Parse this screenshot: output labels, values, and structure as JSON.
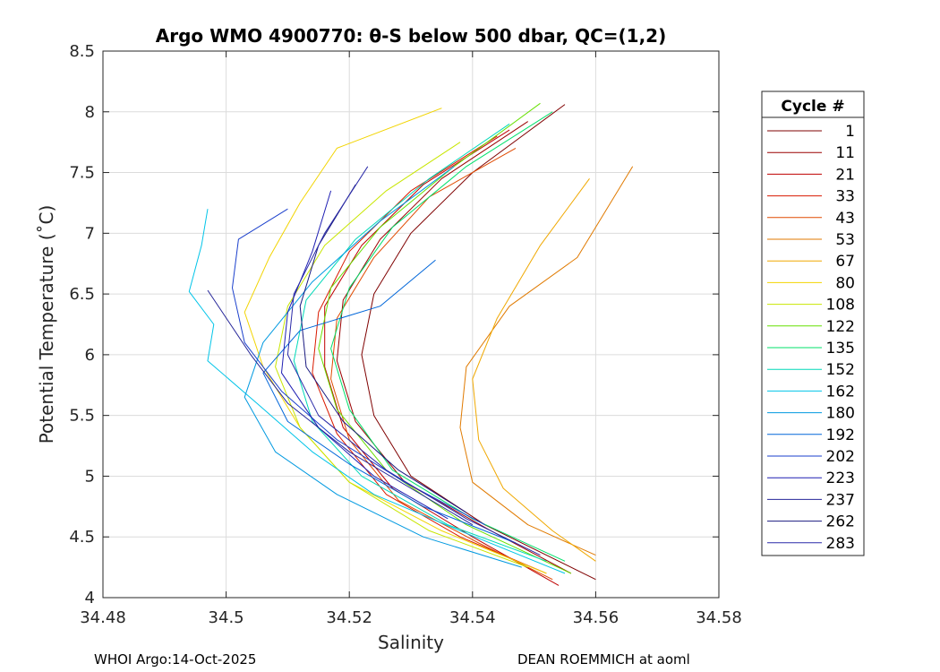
{
  "chart_data": {
    "type": "line",
    "title": "Argo WMO 4900770: θ-S below 500 dbar,  QC=(1,2)",
    "xlabel": "Salinity",
    "ylabel": "Potential Temperature (˚C)",
    "xlim": [
      34.48,
      34.58
    ],
    "ylim": [
      4,
      8.5
    ],
    "xticks": [
      34.48,
      34.5,
      34.52,
      34.54,
      34.56,
      34.58
    ],
    "xtick_labels": [
      "34.48",
      "34.5",
      "34.52",
      "34.54",
      "34.56",
      "34.58"
    ],
    "yticks": [
      4,
      4.5,
      5,
      5.5,
      6,
      6.5,
      7,
      7.5,
      8,
      8.5
    ],
    "ytick_labels": [
      "4",
      "4.5",
      "5",
      "5.5",
      "6",
      "6.5",
      "7",
      "7.5",
      "8",
      "8.5"
    ],
    "grid": true,
    "legend_title": "Cycle #",
    "legend_position": "outside-right",
    "series": [
      {
        "name": "1",
        "color": "#7f0000",
        "points": [
          [
            34.555,
            8.06
          ],
          [
            34.54,
            7.5
          ],
          [
            34.53,
            7.0
          ],
          [
            34.524,
            6.5
          ],
          [
            34.522,
            6.0
          ],
          [
            34.524,
            5.5
          ],
          [
            34.53,
            5.0
          ],
          [
            34.542,
            4.6
          ],
          [
            34.56,
            4.15
          ]
        ]
      },
      {
        "name": "11",
        "color": "#9a0000",
        "points": [
          [
            34.549,
            7.92
          ],
          [
            34.535,
            7.45
          ],
          [
            34.525,
            6.95
          ],
          [
            34.519,
            6.45
          ],
          [
            34.518,
            5.95
          ],
          [
            34.521,
            5.45
          ],
          [
            34.529,
            4.95
          ],
          [
            34.543,
            4.55
          ],
          [
            34.556,
            4.2
          ]
        ]
      },
      {
        "name": "21",
        "color": "#bf0000",
        "points": [
          [
            34.546,
            7.85
          ],
          [
            34.532,
            7.4
          ],
          [
            34.522,
            6.9
          ],
          [
            34.516,
            6.4
          ],
          [
            34.516,
            5.9
          ],
          [
            34.519,
            5.4
          ],
          [
            34.527,
            4.9
          ],
          [
            34.54,
            4.5
          ],
          [
            34.554,
            4.1
          ]
        ]
      },
      {
        "name": "33",
        "color": "#d91a00",
        "points": [
          [
            34.544,
            7.8
          ],
          [
            34.53,
            7.35
          ],
          [
            34.52,
            6.85
          ],
          [
            34.515,
            6.35
          ],
          [
            34.514,
            5.85
          ],
          [
            34.518,
            5.35
          ],
          [
            34.526,
            4.85
          ],
          [
            34.538,
            4.5
          ],
          [
            34.552,
            4.2
          ]
        ]
      },
      {
        "name": "43",
        "color": "#e04a00",
        "points": [
          [
            34.547,
            7.7
          ],
          [
            34.533,
            7.3
          ],
          [
            34.524,
            6.8
          ],
          [
            34.518,
            6.3
          ],
          [
            34.517,
            5.8
          ],
          [
            34.52,
            5.3
          ],
          [
            34.528,
            4.8
          ],
          [
            34.541,
            4.45
          ],
          [
            34.553,
            4.15
          ]
        ]
      },
      {
        "name": "53",
        "color": "#e07a00",
        "points": [
          [
            34.566,
            7.55
          ],
          [
            34.557,
            6.8
          ],
          [
            34.546,
            6.4
          ],
          [
            34.539,
            5.9
          ],
          [
            34.538,
            5.4
          ],
          [
            34.54,
            4.95
          ],
          [
            34.549,
            4.6
          ],
          [
            34.56,
            4.35
          ]
        ]
      },
      {
        "name": "67",
        "color": "#f0a800",
        "points": [
          [
            34.559,
            7.45
          ],
          [
            34.551,
            6.9
          ],
          [
            34.544,
            6.3
          ],
          [
            34.54,
            5.8
          ],
          [
            34.541,
            5.3
          ],
          [
            34.545,
            4.9
          ],
          [
            34.553,
            4.55
          ],
          [
            34.56,
            4.3
          ]
        ]
      },
      {
        "name": "80",
        "color": "#f2d400",
        "points": [
          [
            34.535,
            8.03
          ],
          [
            34.518,
            7.7
          ],
          [
            34.512,
            7.25
          ],
          [
            34.507,
            6.8
          ],
          [
            34.503,
            6.35
          ],
          [
            34.506,
            5.9
          ],
          [
            34.512,
            5.4
          ],
          [
            34.52,
            4.95
          ],
          [
            34.535,
            4.55
          ],
          [
            34.552,
            4.2
          ]
        ]
      },
      {
        "name": "108",
        "color": "#c8e600",
        "points": [
          [
            34.538,
            7.75
          ],
          [
            34.526,
            7.35
          ],
          [
            34.516,
            6.9
          ],
          [
            34.51,
            6.4
          ],
          [
            34.508,
            5.9
          ],
          [
            34.512,
            5.4
          ],
          [
            34.52,
            4.95
          ],
          [
            34.533,
            4.55
          ],
          [
            34.549,
            4.25
          ]
        ]
      },
      {
        "name": "122",
        "color": "#66e000",
        "points": [
          [
            34.551,
            8.07
          ],
          [
            34.537,
            7.55
          ],
          [
            34.525,
            7.05
          ],
          [
            34.517,
            6.55
          ],
          [
            34.515,
            6.05
          ],
          [
            34.518,
            5.55
          ],
          [
            34.526,
            5.05
          ],
          [
            34.539,
            4.6
          ],
          [
            34.556,
            4.2
          ]
        ]
      },
      {
        "name": "135",
        "color": "#00e06a",
        "points": [
          [
            34.553,
            8.0
          ],
          [
            34.539,
            7.55
          ],
          [
            34.527,
            7.05
          ],
          [
            34.52,
            6.55
          ],
          [
            34.517,
            6.05
          ],
          [
            34.52,
            5.55
          ],
          [
            34.527,
            5.05
          ],
          [
            34.54,
            4.65
          ],
          [
            34.555,
            4.3
          ]
        ]
      },
      {
        "name": "152",
        "color": "#00d9b8",
        "points": [
          [
            34.546,
            7.9
          ],
          [
            34.533,
            7.45
          ],
          [
            34.521,
            6.95
          ],
          [
            34.513,
            6.45
          ],
          [
            34.511,
            5.95
          ],
          [
            34.514,
            5.45
          ],
          [
            34.522,
            5.0
          ],
          [
            34.536,
            4.6
          ],
          [
            34.552,
            4.3
          ]
        ]
      },
      {
        "name": "162",
        "color": "#00c4e8",
        "points": [
          [
            34.497,
            7.2
          ],
          [
            34.496,
            6.9
          ],
          [
            34.494,
            6.52
          ],
          [
            34.498,
            6.25
          ],
          [
            34.497,
            5.95
          ],
          [
            34.505,
            5.6
          ],
          [
            34.514,
            5.2
          ],
          [
            34.524,
            4.85
          ],
          [
            34.538,
            4.55
          ],
          [
            34.555,
            4.2
          ]
        ]
      },
      {
        "name": "180",
        "color": "#0099e0",
        "points": [
          [
            34.537,
            7.55
          ],
          [
            34.525,
            7.1
          ],
          [
            34.514,
            6.6
          ],
          [
            34.506,
            6.1
          ],
          [
            34.503,
            5.65
          ],
          [
            34.508,
            5.2
          ],
          [
            34.518,
            4.85
          ],
          [
            34.532,
            4.5
          ],
          [
            34.548,
            4.25
          ]
        ]
      },
      {
        "name": "192",
        "color": "#0066d9",
        "points": [
          [
            34.534,
            6.78
          ],
          [
            34.525,
            6.4
          ],
          [
            34.512,
            6.2
          ],
          [
            34.506,
            5.85
          ],
          [
            34.51,
            5.45
          ],
          [
            34.52,
            5.1
          ],
          [
            34.532,
            4.75
          ],
          [
            34.547,
            4.45
          ]
        ]
      },
      {
        "name": "202",
        "color": "#1a3fcc",
        "points": [
          [
            34.51,
            7.2
          ],
          [
            34.502,
            6.95
          ],
          [
            34.501,
            6.55
          ],
          [
            34.503,
            6.1
          ],
          [
            34.509,
            5.7
          ],
          [
            34.518,
            5.3
          ],
          [
            34.529,
            4.95
          ],
          [
            34.542,
            4.6
          ]
        ]
      },
      {
        "name": "223",
        "color": "#1f1fb3",
        "points": [
          [
            34.517,
            7.35
          ],
          [
            34.514,
            6.85
          ],
          [
            34.51,
            6.35
          ],
          [
            34.509,
            5.85
          ],
          [
            34.515,
            5.4
          ],
          [
            34.524,
            5.0
          ],
          [
            34.536,
            4.65
          ]
        ]
      },
      {
        "name": "237",
        "color": "#262699",
        "points": [
          [
            34.497,
            6.53
          ],
          [
            34.504,
            6.0
          ],
          [
            34.51,
            5.6
          ],
          [
            34.52,
            5.2
          ],
          [
            34.53,
            4.9
          ],
          [
            34.54,
            4.6
          ]
        ]
      },
      {
        "name": "262",
        "color": "#1a1a80",
        "points": [
          [
            34.521,
            7.4
          ],
          [
            34.515,
            6.9
          ],
          [
            34.512,
            6.4
          ],
          [
            34.513,
            5.9
          ],
          [
            34.519,
            5.45
          ],
          [
            34.528,
            5.05
          ],
          [
            34.539,
            4.7
          ]
        ]
      },
      {
        "name": "283",
        "color": "#2a2aa8",
        "points": [
          [
            34.523,
            7.55
          ],
          [
            34.516,
            7.0
          ],
          [
            34.511,
            6.5
          ],
          [
            34.51,
            6.0
          ],
          [
            34.515,
            5.5
          ],
          [
            34.526,
            5.05
          ],
          [
            34.539,
            4.65
          ],
          [
            34.551,
            4.35
          ]
        ]
      }
    ]
  },
  "footer": {
    "left": "WHOI Argo:14-Oct-2025",
    "right": "DEAN ROEMMICH at aoml"
  }
}
